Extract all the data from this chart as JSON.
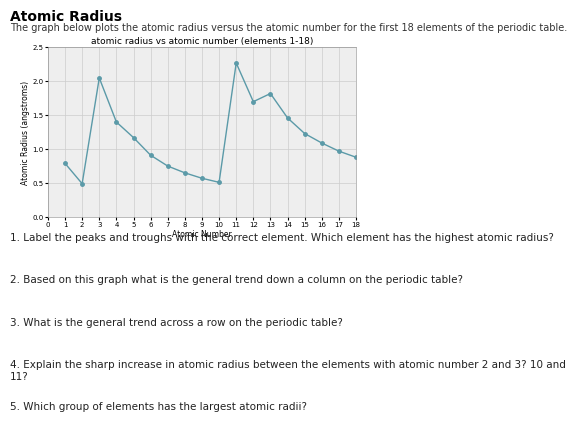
{
  "page_title": "Atomic Radius",
  "page_subtitle": "The graph below plots the atomic radius versus the atomic number for the first 18 elements of the periodic table.",
  "chart_title": "atomic radius vs atomic number (elements 1-18)",
  "xlabel": "Atomic Number",
  "ylabel": "Atomic Radius (angstroms)",
  "x": [
    1,
    2,
    3,
    4,
    5,
    6,
    7,
    8,
    9,
    10,
    11,
    12,
    13,
    14,
    15,
    16,
    17,
    18
  ],
  "y": [
    0.79,
    0.49,
    2.05,
    1.4,
    1.17,
    0.91,
    0.75,
    0.65,
    0.57,
    0.51,
    2.27,
    1.7,
    1.82,
    1.46,
    1.23,
    1.09,
    0.97,
    0.88
  ],
  "line_color": "#5b9aa8",
  "marker": "o",
  "marker_size": 2.5,
  "ylim": [
    0,
    2.5
  ],
  "xlim": [
    0,
    18
  ],
  "yticks": [
    0,
    0.5,
    1.0,
    1.5,
    2.0,
    2.5
  ],
  "xticks": [
    0,
    1,
    2,
    3,
    4,
    5,
    6,
    7,
    8,
    9,
    10,
    11,
    12,
    13,
    14,
    15,
    16,
    17,
    18
  ],
  "grid_color": "#cccccc",
  "bg_color": "#eeeeee",
  "page_bg": "#ffffff",
  "chart_title_fontsize": 6.5,
  "label_fontsize": 5.5,
  "tick_fontsize": 5,
  "page_title_fontsize": 10,
  "subtitle_fontsize": 7,
  "question_fontsize": 7.5,
  "questions": [
    "1. Label the peaks and troughs with the correct element. Which element has the highest atomic radius?",
    "2. Based on this graph what is the general trend down a column on the periodic table?",
    "3. What is the general trend across a row on the periodic table?",
    "4. Explain the sharp increase in atomic radius between the elements with atomic number 2 and 3? 10 and 11?",
    "5. Which group of elements has the largest atomic radii?"
  ]
}
